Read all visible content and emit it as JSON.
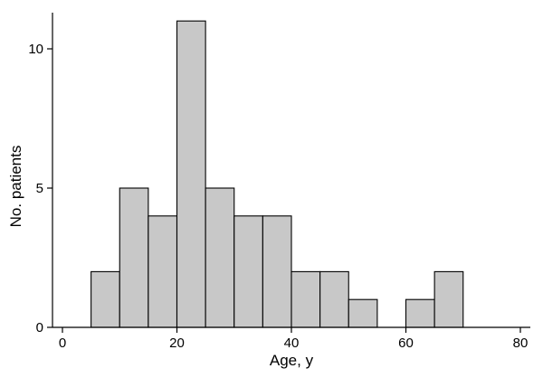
{
  "chart_data": {
    "type": "bar",
    "subtype": "histogram",
    "title": "",
    "xlabel": "Age, y",
    "ylabel": "No. patients",
    "xlim": [
      0,
      80
    ],
    "ylim": [
      0,
      11
    ],
    "x_ticks": [
      0,
      20,
      40,
      60,
      80
    ],
    "y_ticks": [
      0,
      5,
      10
    ],
    "grid": false,
    "legend": "none",
    "bar_color": "#c8c8c8",
    "bins": [
      {
        "start": 5,
        "end": 10,
        "value": 2
      },
      {
        "start": 10,
        "end": 15,
        "value": 5
      },
      {
        "start": 15,
        "end": 20,
        "value": 4
      },
      {
        "start": 20,
        "end": 25,
        "value": 11
      },
      {
        "start": 25,
        "end": 30,
        "value": 5
      },
      {
        "start": 30,
        "end": 35,
        "value": 4
      },
      {
        "start": 35,
        "end": 40,
        "value": 4
      },
      {
        "start": 40,
        "end": 45,
        "value": 2
      },
      {
        "start": 45,
        "end": 50,
        "value": 2
      },
      {
        "start": 50,
        "end": 55,
        "value": 1
      },
      {
        "start": 55,
        "end": 60,
        "value": 0
      },
      {
        "start": 60,
        "end": 65,
        "value": 1
      },
      {
        "start": 65,
        "end": 70,
        "value": 2
      }
    ]
  }
}
